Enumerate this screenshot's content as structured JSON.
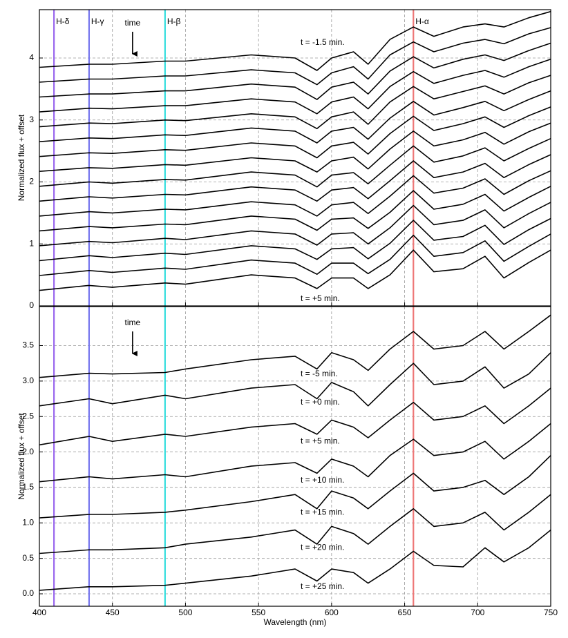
{
  "chart_data": [
    {
      "type": "line",
      "ylabel": "Normalized flux + offset",
      "color": "#000000",
      "annotation": "time",
      "xlim": [
        400,
        750
      ],
      "xticks": [
        400,
        450,
        500,
        550,
        600,
        650,
        700,
        750
      ],
      "ylim": [
        0,
        4.78
      ],
      "yticks": [
        0,
        1,
        2,
        3,
        4
      ],
      "grid": true,
      "reference_lines": [
        {
          "label": "H-δ",
          "x": 410,
          "color": "#9966ee"
        },
        {
          "label": "H-γ",
          "x": 434,
          "color": "#7777ee"
        },
        {
          "label": "H-β",
          "x": 486,
          "color": "#33dddd"
        },
        {
          "label": "H-α",
          "x": 656,
          "color": "#ee7777"
        }
      ],
      "x": [
        400,
        434,
        450,
        486,
        500,
        545,
        575,
        590,
        600,
        615,
        625,
        640,
        656,
        670,
        690,
        705,
        718,
        735,
        750
      ],
      "series": [
        {
          "name": "t = +5 min.",
          "values": [
            0.25,
            0.33,
            0.3,
            0.37,
            0.35,
            0.5,
            0.45,
            0.28,
            0.45,
            0.45,
            0.28,
            0.5,
            0.9,
            0.55,
            0.6,
            0.8,
            0.45,
            0.7,
            0.9
          ]
        },
        {
          "values": [
            0.49,
            0.57,
            0.54,
            0.61,
            0.59,
            0.74,
            0.69,
            0.51,
            0.69,
            0.69,
            0.52,
            0.75,
            1.14,
            0.8,
            0.86,
            1.05,
            0.72,
            0.96,
            1.16
          ]
        },
        {
          "values": [
            0.73,
            0.81,
            0.78,
            0.85,
            0.83,
            0.97,
            0.92,
            0.75,
            0.92,
            0.94,
            0.76,
            1.01,
            1.38,
            1.06,
            1.12,
            1.3,
            0.99,
            1.23,
            1.41
          ]
        },
        {
          "values": [
            0.97,
            1.04,
            1.02,
            1.09,
            1.07,
            1.21,
            1.16,
            0.98,
            1.16,
            1.18,
            1.0,
            1.26,
            1.62,
            1.31,
            1.38,
            1.55,
            1.26,
            1.49,
            1.67
          ]
        },
        {
          "values": [
            1.21,
            1.28,
            1.26,
            1.32,
            1.31,
            1.45,
            1.4,
            1.22,
            1.4,
            1.42,
            1.25,
            1.51,
            1.86,
            1.56,
            1.64,
            1.8,
            1.53,
            1.75,
            1.93
          ]
        },
        {
          "values": [
            1.45,
            1.52,
            1.5,
            1.56,
            1.55,
            1.68,
            1.63,
            1.45,
            1.63,
            1.67,
            1.49,
            1.77,
            2.1,
            1.82,
            1.9,
            2.05,
            1.8,
            2.02,
            2.18
          ]
        },
        {
          "values": [
            1.69,
            1.76,
            1.74,
            1.8,
            1.79,
            1.92,
            1.87,
            1.69,
            1.87,
            1.91,
            1.73,
            2.02,
            2.34,
            2.07,
            2.16,
            2.3,
            2.07,
            2.28,
            2.44
          ]
        },
        {
          "values": [
            1.93,
            2.0,
            1.98,
            2.04,
            2.03,
            2.16,
            2.11,
            1.92,
            2.11,
            2.15,
            1.97,
            2.27,
            2.58,
            2.32,
            2.42,
            2.55,
            2.34,
            2.54,
            2.7
          ]
        },
        {
          "values": [
            2.17,
            2.23,
            2.22,
            2.28,
            2.27,
            2.39,
            2.34,
            2.16,
            2.34,
            2.4,
            2.21,
            2.53,
            2.82,
            2.58,
            2.68,
            2.8,
            2.61,
            2.81,
            2.95
          ]
        },
        {
          "values": [
            2.41,
            2.47,
            2.46,
            2.52,
            2.51,
            2.63,
            2.58,
            2.39,
            2.58,
            2.64,
            2.45,
            2.78,
            3.06,
            2.83,
            2.94,
            3.05,
            2.88,
            3.07,
            3.21
          ]
        },
        {
          "values": [
            2.65,
            2.71,
            2.7,
            2.76,
            2.75,
            2.87,
            2.82,
            2.63,
            2.82,
            2.88,
            2.69,
            3.03,
            3.3,
            3.08,
            3.2,
            3.3,
            3.15,
            3.33,
            3.47
          ]
        },
        {
          "values": [
            2.89,
            2.95,
            2.94,
            3.0,
            2.99,
            3.1,
            3.05,
            2.86,
            3.05,
            3.13,
            2.93,
            3.29,
            3.54,
            3.34,
            3.46,
            3.55,
            3.42,
            3.6,
            3.72
          ]
        },
        {
          "values": [
            3.13,
            3.19,
            3.18,
            3.23,
            3.23,
            3.34,
            3.29,
            3.1,
            3.29,
            3.37,
            3.18,
            3.54,
            3.78,
            3.59,
            3.72,
            3.8,
            3.69,
            3.86,
            3.98
          ]
        },
        {
          "values": [
            3.37,
            3.42,
            3.42,
            3.47,
            3.47,
            3.58,
            3.53,
            3.33,
            3.53,
            3.61,
            3.42,
            3.79,
            4.02,
            3.84,
            3.98,
            4.05,
            3.96,
            4.12,
            4.24
          ]
        },
        {
          "values": [
            3.61,
            3.66,
            3.66,
            3.71,
            3.71,
            3.81,
            3.76,
            3.57,
            3.76,
            3.86,
            3.66,
            4.05,
            4.26,
            4.1,
            4.24,
            4.3,
            4.23,
            4.39,
            4.49
          ]
        },
        {
          "name": "t = -1.5 min.",
          "values": [
            3.85,
            3.9,
            3.9,
            3.95,
            3.95,
            4.05,
            4.0,
            3.8,
            4.0,
            4.1,
            3.9,
            4.3,
            4.5,
            4.35,
            4.5,
            4.55,
            4.5,
            4.65,
            4.75
          ]
        }
      ]
    },
    {
      "type": "line",
      "ylabel": "Normalized flux + offset",
      "xlabel": "Wavelength (nm)",
      "color": "#000000",
      "annotation": "time",
      "xlim": [
        400,
        750
      ],
      "xticks": [
        400,
        450,
        500,
        550,
        600,
        650,
        700,
        750
      ],
      "ylim": [
        -0.175,
        4.05
      ],
      "yticks": [
        {
          "value": 0,
          "label": "0.0"
        },
        {
          "value": 0.5,
          "label": "0.5"
        },
        {
          "value": 1,
          "label": "1.0"
        },
        {
          "value": 1.5,
          "label": "1.5"
        },
        {
          "value": 2,
          "label": "2.0"
        },
        {
          "value": 2.5,
          "label": "2.5"
        },
        {
          "value": 3,
          "label": "3.0"
        },
        {
          "value": 3.5,
          "label": "3.5"
        }
      ],
      "grid": true,
      "reference_lines": [
        {
          "x": 410,
          "color": "#9966ee"
        },
        {
          "x": 434,
          "color": "#7777ee"
        },
        {
          "x": 486,
          "color": "#33dddd"
        },
        {
          "x": 656,
          "color": "#ee7777"
        }
      ],
      "x": [
        400,
        434,
        450,
        486,
        500,
        545,
        575,
        590,
        600,
        615,
        625,
        640,
        656,
        670,
        690,
        705,
        718,
        735,
        750
      ],
      "series": [
        {
          "name": "t = -5 min.",
          "values": [
            3.05,
            3.11,
            3.1,
            3.12,
            3.17,
            3.3,
            3.35,
            3.17,
            3.4,
            3.3,
            3.15,
            3.45,
            3.7,
            3.45,
            3.5,
            3.7,
            3.45,
            3.7,
            3.93
          ]
        },
        {
          "name": "t = +0 min.",
          "values": [
            2.65,
            2.75,
            2.68,
            2.8,
            2.75,
            2.9,
            2.95,
            2.75,
            2.98,
            2.85,
            2.65,
            2.95,
            3.25,
            2.95,
            3.0,
            3.2,
            2.9,
            3.1,
            3.4
          ]
        },
        {
          "name": "t = +5 min.",
          "values": [
            2.1,
            2.22,
            2.15,
            2.25,
            2.22,
            2.35,
            2.4,
            2.25,
            2.45,
            2.35,
            2.2,
            2.45,
            2.7,
            2.45,
            2.5,
            2.65,
            2.4,
            2.65,
            2.9
          ]
        },
        {
          "name": "t = +10 min.",
          "values": [
            1.58,
            1.65,
            1.62,
            1.68,
            1.65,
            1.8,
            1.85,
            1.7,
            1.9,
            1.8,
            1.65,
            1.95,
            2.18,
            1.95,
            2.0,
            2.15,
            1.9,
            2.15,
            2.4
          ]
        },
        {
          "name": "t = +15 min.",
          "values": [
            1.07,
            1.12,
            1.12,
            1.15,
            1.18,
            1.3,
            1.4,
            1.2,
            1.45,
            1.35,
            1.2,
            1.45,
            1.7,
            1.45,
            1.5,
            1.6,
            1.4,
            1.65,
            1.95
          ]
        },
        {
          "name": "t = +20 min.",
          "values": [
            0.57,
            0.62,
            0.62,
            0.65,
            0.7,
            0.8,
            0.9,
            0.7,
            0.95,
            0.85,
            0.7,
            0.95,
            1.2,
            0.95,
            1.0,
            1.15,
            0.9,
            1.15,
            1.4
          ]
        },
        {
          "name": "t = +25 min.",
          "values": [
            0.05,
            0.1,
            0.1,
            0.12,
            0.15,
            0.25,
            0.35,
            0.18,
            0.35,
            0.3,
            0.15,
            0.35,
            0.6,
            0.4,
            0.38,
            0.65,
            0.45,
            0.65,
            0.9
          ]
        }
      ]
    }
  ]
}
